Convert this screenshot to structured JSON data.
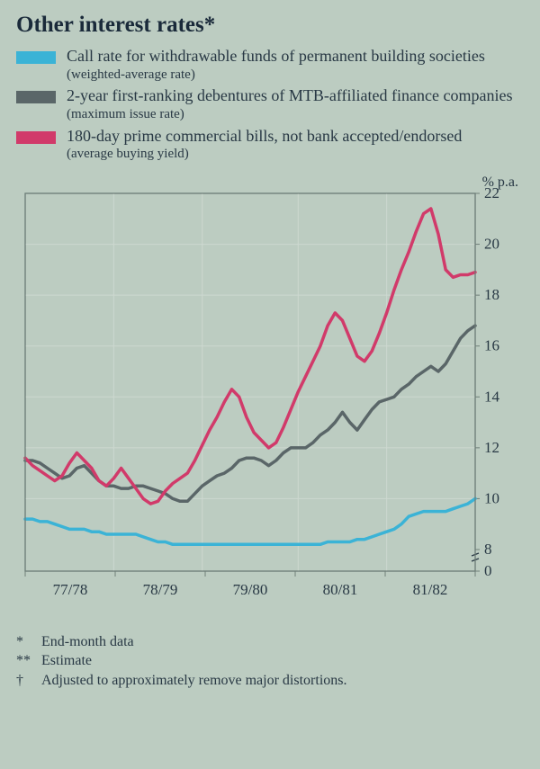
{
  "title": "Other interest rates*",
  "chart": {
    "type": "line",
    "background_color": "#bcccc1",
    "plot_background": "#bcccc1",
    "grid_color": "#cdd8d0",
    "border_color": "#6f7f79",
    "text_color": "#283844",
    "y_axis_label": "% p.a.",
    "y_axis_label_fontsize": 16,
    "ylim": [
      0,
      22
    ],
    "break_from": 0,
    "break_to": 8,
    "y_ticks": [
      0,
      8,
      10,
      12,
      14,
      16,
      18,
      20,
      22
    ],
    "x_labels": [
      "77/78",
      "78/79",
      "79/80",
      "80/81",
      "81/82"
    ],
    "x_label_fontsize": 17,
    "y_tick_fontsize": 17,
    "series": [
      {
        "name": "call_rate",
        "label_main": "Call rate for withdrawable funds of permanent building societies",
        "label_sub": "(weighted-average rate)",
        "color": "#3bb3d6",
        "line_width": 3.5,
        "values": [
          9.2,
          9.2,
          9.1,
          9.1,
          9.0,
          8.9,
          8.8,
          8.8,
          8.8,
          8.7,
          8.7,
          8.6,
          8.6,
          8.6,
          8.6,
          8.6,
          8.5,
          8.4,
          8.3,
          8.3,
          8.2,
          8.2,
          8.2,
          8.2,
          8.2,
          8.2,
          8.2,
          8.2,
          8.2,
          8.2,
          8.2,
          8.2,
          8.2,
          8.2,
          8.2,
          8.2,
          8.2,
          8.2,
          8.2,
          8.2,
          8.2,
          8.3,
          8.3,
          8.3,
          8.3,
          8.4,
          8.4,
          8.5,
          8.6,
          8.7,
          8.8,
          9.0,
          9.3,
          9.4,
          9.5,
          9.5,
          9.5,
          9.5,
          9.6,
          9.7,
          9.8,
          10.0
        ]
      },
      {
        "name": "debentures",
        "label_main": "2-year first-ranking debentures of MTB-affiliated finance companies",
        "label_sub": "(maximum issue rate)",
        "color": "#5a6668",
        "line_width": 3.5,
        "values": [
          11.5,
          11.5,
          11.4,
          11.2,
          11.0,
          10.8,
          10.9,
          11.2,
          11.3,
          11.0,
          10.7,
          10.5,
          10.5,
          10.4,
          10.4,
          10.5,
          10.5,
          10.4,
          10.3,
          10.2,
          10.0,
          9.9,
          9.9,
          10.2,
          10.5,
          10.7,
          10.9,
          11.0,
          11.2,
          11.5,
          11.6,
          11.6,
          11.5,
          11.3,
          11.5,
          11.8,
          12.0,
          12.0,
          12.0,
          12.2,
          12.5,
          12.7,
          13.0,
          13.4,
          13.0,
          12.7,
          13.1,
          13.5,
          13.8,
          13.9,
          14.0,
          14.3,
          14.5,
          14.8,
          15.0,
          15.2,
          15.0,
          15.3,
          15.8,
          16.3,
          16.6,
          16.8
        ]
      },
      {
        "name": "commercial_bills",
        "label_main": "180-day prime commercial bills, not bank accepted/endorsed",
        "label_sub": "(average buying yield)",
        "color": "#d13a6a",
        "line_width": 3.5,
        "values": [
          11.6,
          11.3,
          11.1,
          10.9,
          10.7,
          10.9,
          11.4,
          11.8,
          11.5,
          11.2,
          10.7,
          10.5,
          10.8,
          11.2,
          10.8,
          10.4,
          10.0,
          9.8,
          9.9,
          10.3,
          10.6,
          10.8,
          11.0,
          11.5,
          12.1,
          12.7,
          13.2,
          13.8,
          14.3,
          14.0,
          13.2,
          12.6,
          12.3,
          12.0,
          12.2,
          12.8,
          13.5,
          14.2,
          14.8,
          15.4,
          16.0,
          16.8,
          17.3,
          17.0,
          16.3,
          15.6,
          15.4,
          15.8,
          16.5,
          17.3,
          18.2,
          19.0,
          19.7,
          20.5,
          21.2,
          21.4,
          20.4,
          19.0,
          18.7,
          18.8,
          18.8,
          18.9
        ]
      }
    ]
  },
  "footnotes": [
    {
      "mark": "*",
      "text": "End-month data"
    },
    {
      "mark": "**",
      "text": "Estimate"
    },
    {
      "mark": "†",
      "text": "Adjusted to approximately remove major distortions."
    }
  ]
}
